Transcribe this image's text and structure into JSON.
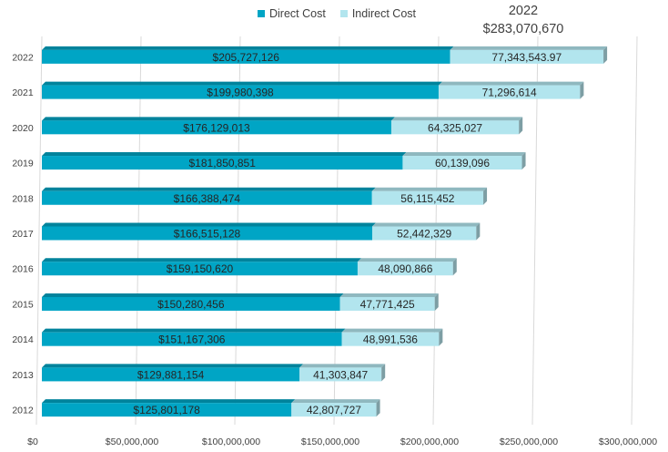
{
  "chart_data": {
    "type": "bar",
    "orientation": "horizontal",
    "stacked": true,
    "categories": [
      "2022",
      "2021",
      "2020",
      "2019",
      "2018",
      "2017",
      "2016",
      "2015",
      "2014",
      "2013",
      "2012"
    ],
    "series": [
      {
        "name": "Direct Cost",
        "color": "#00A5C5",
        "values": [
          205727126,
          199980398,
          176129013,
          181850851,
          166388474,
          166515128,
          159150620,
          150280456,
          151167306,
          129881154,
          125801178
        ],
        "labels": [
          "$205,727,126",
          "$199,980,398",
          "$176,129,013",
          "$181,850,851",
          "$166,388,474",
          "$166,515,128",
          "$159,150,620",
          "$150,280,456",
          "$151,167,306",
          "$129,881,154",
          "$125,801,178"
        ]
      },
      {
        "name": "Indirect Cost",
        "color": "#B2E5EE",
        "values": [
          77343543.97,
          71296614,
          64325027,
          60139096,
          56115452,
          52442329,
          48090866,
          47771425,
          48991536,
          41303847,
          42807727
        ],
        "labels": [
          "77,343,543.97",
          "71,296,614",
          "64,325,027",
          "60,139,096",
          "56,115,452",
          "52,442,329",
          "48,090,866",
          "47,771,425",
          "48,991,536",
          "41,303,847",
          "42,807,727"
        ]
      }
    ],
    "xlim": [
      0,
      300000000
    ],
    "x_ticks": [
      0,
      50000000,
      100000000,
      150000000,
      200000000,
      250000000,
      300000000
    ],
    "x_tick_labels": [
      "$0",
      "$50,000,000",
      "$100,000,000",
      "$150,000,000",
      "$200,000,000",
      "$250,000,000",
      "$300,000,000"
    ],
    "grid": true,
    "legend_position": "top-center",
    "annotation": {
      "year": "2022",
      "total": "$283,070,670"
    }
  }
}
